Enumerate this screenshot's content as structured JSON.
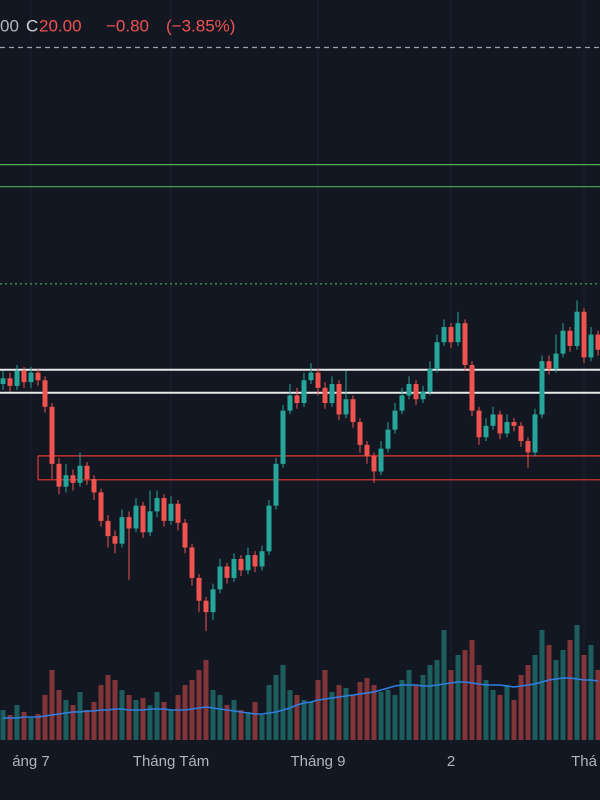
{
  "chart_data": {
    "type": "candlestick",
    "header": {
      "open_partial": "00",
      "close_label": "C",
      "close": "20.00",
      "change": "−0.80",
      "change_pct": "(−3.85%)"
    },
    "categories": [
      "áng 7",
      "Tháng Tám",
      "Tháng 9",
      "2",
      "Thá"
    ],
    "category_index": [
      4,
      24,
      45,
      64,
      83
    ],
    "ylim": [
      0,
      38.4
    ],
    "grid": true,
    "up_color": "#26a69a",
    "down_color": "#ef5350",
    "open": [
      18.2,
      18.5,
      18.1,
      18.9,
      18.3,
      18.8,
      18.4,
      17.0,
      14.0,
      12.8,
      13.4,
      13.0,
      13.9,
      13.2,
      12.5,
      11.0,
      10.2,
      9.8,
      11.2,
      10.6,
      11.8,
      10.4,
      11.5,
      12.2,
      11.0,
      11.9,
      10.9,
      9.6,
      8.0,
      6.8,
      6.2,
      7.4,
      8.6,
      8.0,
      9.0,
      8.4,
      9.2,
      8.6,
      9.4,
      11.8,
      14.0,
      16.8,
      17.6,
      17.2,
      18.4,
      18.8,
      18.0,
      17.2,
      18.2,
      16.6,
      17.4,
      16.2,
      15.0,
      14.4,
      13.6,
      14.8,
      15.8,
      16.8,
      17.6,
      18.2,
      17.4,
      17.8,
      19.0,
      20.4,
      21.2,
      20.4,
      21.4,
      19.2,
      16.8,
      15.4,
      16.0,
      16.6,
      15.6,
      16.2,
      16.0,
      15.2,
      14.6,
      16.6,
      19.4,
      19.0,
      19.8,
      21.0,
      20.2,
      22.0,
      19.6,
      20.8
    ],
    "high": [
      18.9,
      18.8,
      19.2,
      19.1,
      19.1,
      19.0,
      18.6,
      17.2,
      14.3,
      14.0,
      13.7,
      14.6,
      14.1,
      13.4,
      12.7,
      11.3,
      10.5,
      11.6,
      11.5,
      12.2,
      12.0,
      12.6,
      12.6,
      12.4,
      12.3,
      12.1,
      11.1,
      9.8,
      8.2,
      7.0,
      7.7,
      9.0,
      8.8,
      9.3,
      9.2,
      9.6,
      9.4,
      9.7,
      12.1,
      14.3,
      17.1,
      18.2,
      18.0,
      18.8,
      19.3,
      19.0,
      18.3,
      18.6,
      18.4,
      18.9,
      17.6,
      16.4,
      15.2,
      14.6,
      15.2,
      16.2,
      17.2,
      18.0,
      18.6,
      18.4,
      18.1,
      19.4,
      20.8,
      21.6,
      21.4,
      22.0,
      21.6,
      19.4,
      17.0,
      16.4,
      17.0,
      16.8,
      16.6,
      16.4,
      16.2,
      15.4,
      16.9,
      19.7,
      19.7,
      20.8,
      21.4,
      21.2,
      22.6,
      22.2,
      21.2,
      21.0
    ],
    "low": [
      17.9,
      17.8,
      17.9,
      18.0,
      18.0,
      18.1,
      16.7,
      13.2,
      12.4,
      12.5,
      12.6,
      12.8,
      12.9,
      12.1,
      10.7,
      9.6,
      9.3,
      9.6,
      7.9,
      10.4,
      10.1,
      10.2,
      11.2,
      10.7,
      10.8,
      10.5,
      9.3,
      7.6,
      6.2,
      5.2,
      5.8,
      7.2,
      7.7,
      7.8,
      8.1,
      8.2,
      8.3,
      8.4,
      9.2,
      11.6,
      13.8,
      16.6,
      16.9,
      17.0,
      18.2,
      17.6,
      16.9,
      17.0,
      16.3,
      16.4,
      15.9,
      14.6,
      14.0,
      13.0,
      13.4,
      14.6,
      15.6,
      16.6,
      17.4,
      17.1,
      17.2,
      17.6,
      18.8,
      20.2,
      20.1,
      20.2,
      18.9,
      16.5,
      15.0,
      15.2,
      15.8,
      15.3,
      15.4,
      15.7,
      14.9,
      13.8,
      14.4,
      16.4,
      18.7,
      18.8,
      19.6,
      19.9,
      20.0,
      19.3,
      19.4,
      19.7
    ],
    "close": [
      18.5,
      18.1,
      18.9,
      18.3,
      18.8,
      18.4,
      17.0,
      14.0,
      12.8,
      13.4,
      13.0,
      13.9,
      13.2,
      12.5,
      11.0,
      10.2,
      9.8,
      11.2,
      10.6,
      11.8,
      10.4,
      11.5,
      12.2,
      11.0,
      11.9,
      10.9,
      9.6,
      8.0,
      6.8,
      6.2,
      7.4,
      8.6,
      8.0,
      9.0,
      8.4,
      9.2,
      8.6,
      9.4,
      11.8,
      14.0,
      16.8,
      17.6,
      17.2,
      18.4,
      18.8,
      18.0,
      17.2,
      18.2,
      16.6,
      17.4,
      16.2,
      15.0,
      14.4,
      13.6,
      14.8,
      15.8,
      16.8,
      17.6,
      18.2,
      17.4,
      17.8,
      19.0,
      20.4,
      21.2,
      20.4,
      21.4,
      19.2,
      16.8,
      15.4,
      16.0,
      16.6,
      15.6,
      16.2,
      16.0,
      15.2,
      14.6,
      16.6,
      19.4,
      19.0,
      19.8,
      21.0,
      20.2,
      22.0,
      19.6,
      20.8,
      20.0
    ],
    "volume": [
      30,
      25,
      35,
      28,
      22,
      26,
      45,
      70,
      50,
      40,
      35,
      48,
      30,
      38,
      55,
      65,
      60,
      50,
      45,
      40,
      42,
      35,
      48,
      38,
      30,
      45,
      55,
      60,
      70,
      80,
      50,
      45,
      35,
      40,
      30,
      28,
      38,
      25,
      55,
      65,
      75,
      50,
      45,
      40,
      38,
      60,
      70,
      48,
      55,
      52,
      45,
      58,
      62,
      55,
      48,
      50,
      45,
      60,
      70,
      55,
      65,
      75,
      80,
      110,
      70,
      85,
      90,
      100,
      75,
      60,
      50,
      45,
      55,
      40,
      65,
      75,
      85,
      110,
      95,
      80,
      90,
      100,
      115,
      85,
      95,
      70
    ],
    "volume_ma": [
      22,
      22,
      22,
      23,
      23,
      23,
      24,
      25,
      26,
      27,
      28,
      28,
      29,
      29,
      30,
      30,
      31,
      31,
      30,
      30,
      30,
      31,
      31,
      31,
      30,
      30,
      30,
      31,
      32,
      33,
      32,
      31,
      30,
      29,
      28,
      27,
      26,
      26,
      27,
      28,
      30,
      32,
      35,
      37,
      38,
      40,
      41,
      42,
      43,
      44,
      45,
      46,
      47,
      48,
      50,
      52,
      54,
      55,
      55,
      55,
      54,
      54,
      55,
      56,
      57,
      58,
      58,
      57,
      56,
      55,
      55,
      55,
      54,
      53,
      54,
      55,
      56,
      58,
      60,
      61,
      62,
      62,
      61,
      60,
      60,
      59
    ],
    "volume_lim": [
      0,
      140
    ],
    "volume_ma_color": "#2f7fe0",
    "levels": [
      {
        "value": 35.9,
        "color": "#9aa0ad",
        "style": "dashed"
      },
      {
        "value": 29.74,
        "color": "#4caf50",
        "style": "solid"
      },
      {
        "value": 28.58,
        "color": "#4caf50",
        "style": "solid"
      },
      {
        "value": 23.47,
        "color": "#4caf50",
        "style": "dotted"
      },
      {
        "value": 18.95,
        "color": "#e8e8e8",
        "style": "solid"
      },
      {
        "value": 17.74,
        "color": "#e8e8e8",
        "style": "solid"
      },
      {
        "value": 14.42,
        "color": "#e53935",
        "style": "box-top"
      },
      {
        "value": 13.16,
        "color": "#e53935",
        "style": "box-bottom"
      }
    ]
  }
}
